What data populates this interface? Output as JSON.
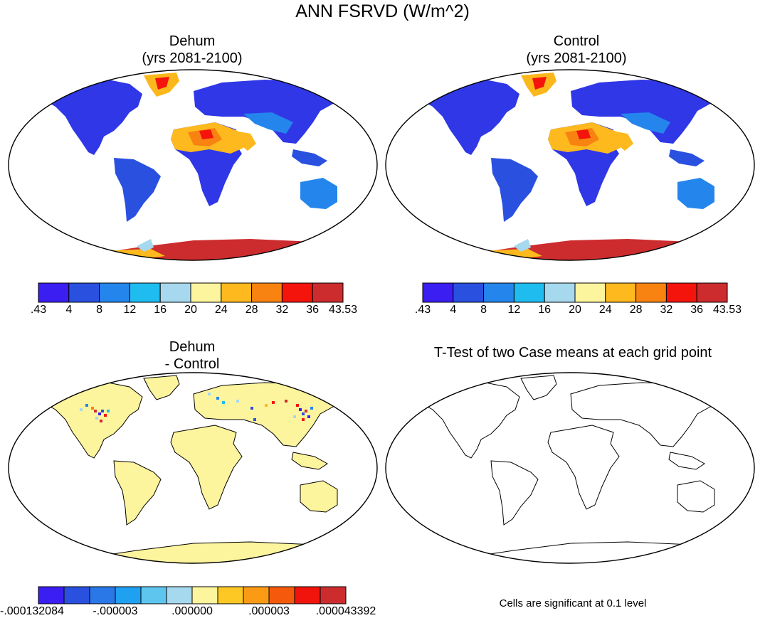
{
  "figure": {
    "title": "ANN FSRVD (W/m^2)",
    "footnote": "Cells are significant at 0.1 level"
  },
  "panels": [
    {
      "id": "dehum",
      "title_line1": "Dehum",
      "title_line2": "(yrs 2081-2100)"
    },
    {
      "id": "control",
      "title_line1": "Control",
      "title_line2": "(yrs 2081-2100)"
    },
    {
      "id": "diff",
      "title_line1": "Dehum",
      "title_line2": "- Control"
    },
    {
      "id": "ttest",
      "title_line1": "T-Test of two Case means at each grid point",
      "title_line2": ""
    }
  ],
  "colorbar_main": {
    "colors": [
      "#3b1ef2",
      "#2a50e0",
      "#2486ec",
      "#1fbcf0",
      "#a6d8ee",
      "#fdf49e",
      "#fdb91e",
      "#f98311",
      "#f5140c",
      "#cc2c2e"
    ],
    "labels": [
      ".43",
      "4",
      "8",
      "12",
      "16",
      "20",
      "24",
      "28",
      "32",
      "36",
      "43.53"
    ]
  },
  "colorbar_diff": {
    "colors": [
      "#3b1ef2",
      "#2a50e0",
      "#2a78e8",
      "#1fa0f0",
      "#5ec6ee",
      "#a6d8ee",
      "#fdf49e",
      "#fdc824",
      "#fb9a14",
      "#f55a0c",
      "#f0140c",
      "#cc2c2e"
    ],
    "labels": [
      "-.000132084",
      "-.000003",
      ".000000",
      ".000003",
      ".000043392"
    ]
  },
  "chart_data": {
    "type": "heatmap",
    "title": "ANN FSRVD (W/m^2)",
    "maps": [
      {
        "name": "Dehum",
        "period": "yrs 2081-2100",
        "range": [
          0.43,
          43.53
        ]
      },
      {
        "name": "Control",
        "period": "yrs 2081-2100",
        "range": [
          0.43,
          43.53
        ]
      },
      {
        "name": "Dehum - Control",
        "range": [
          -0.000132084,
          4.3392e-05
        ]
      },
      {
        "name": "T-Test of two Case means at each grid point",
        "significance_level": 0.1
      }
    ]
  }
}
